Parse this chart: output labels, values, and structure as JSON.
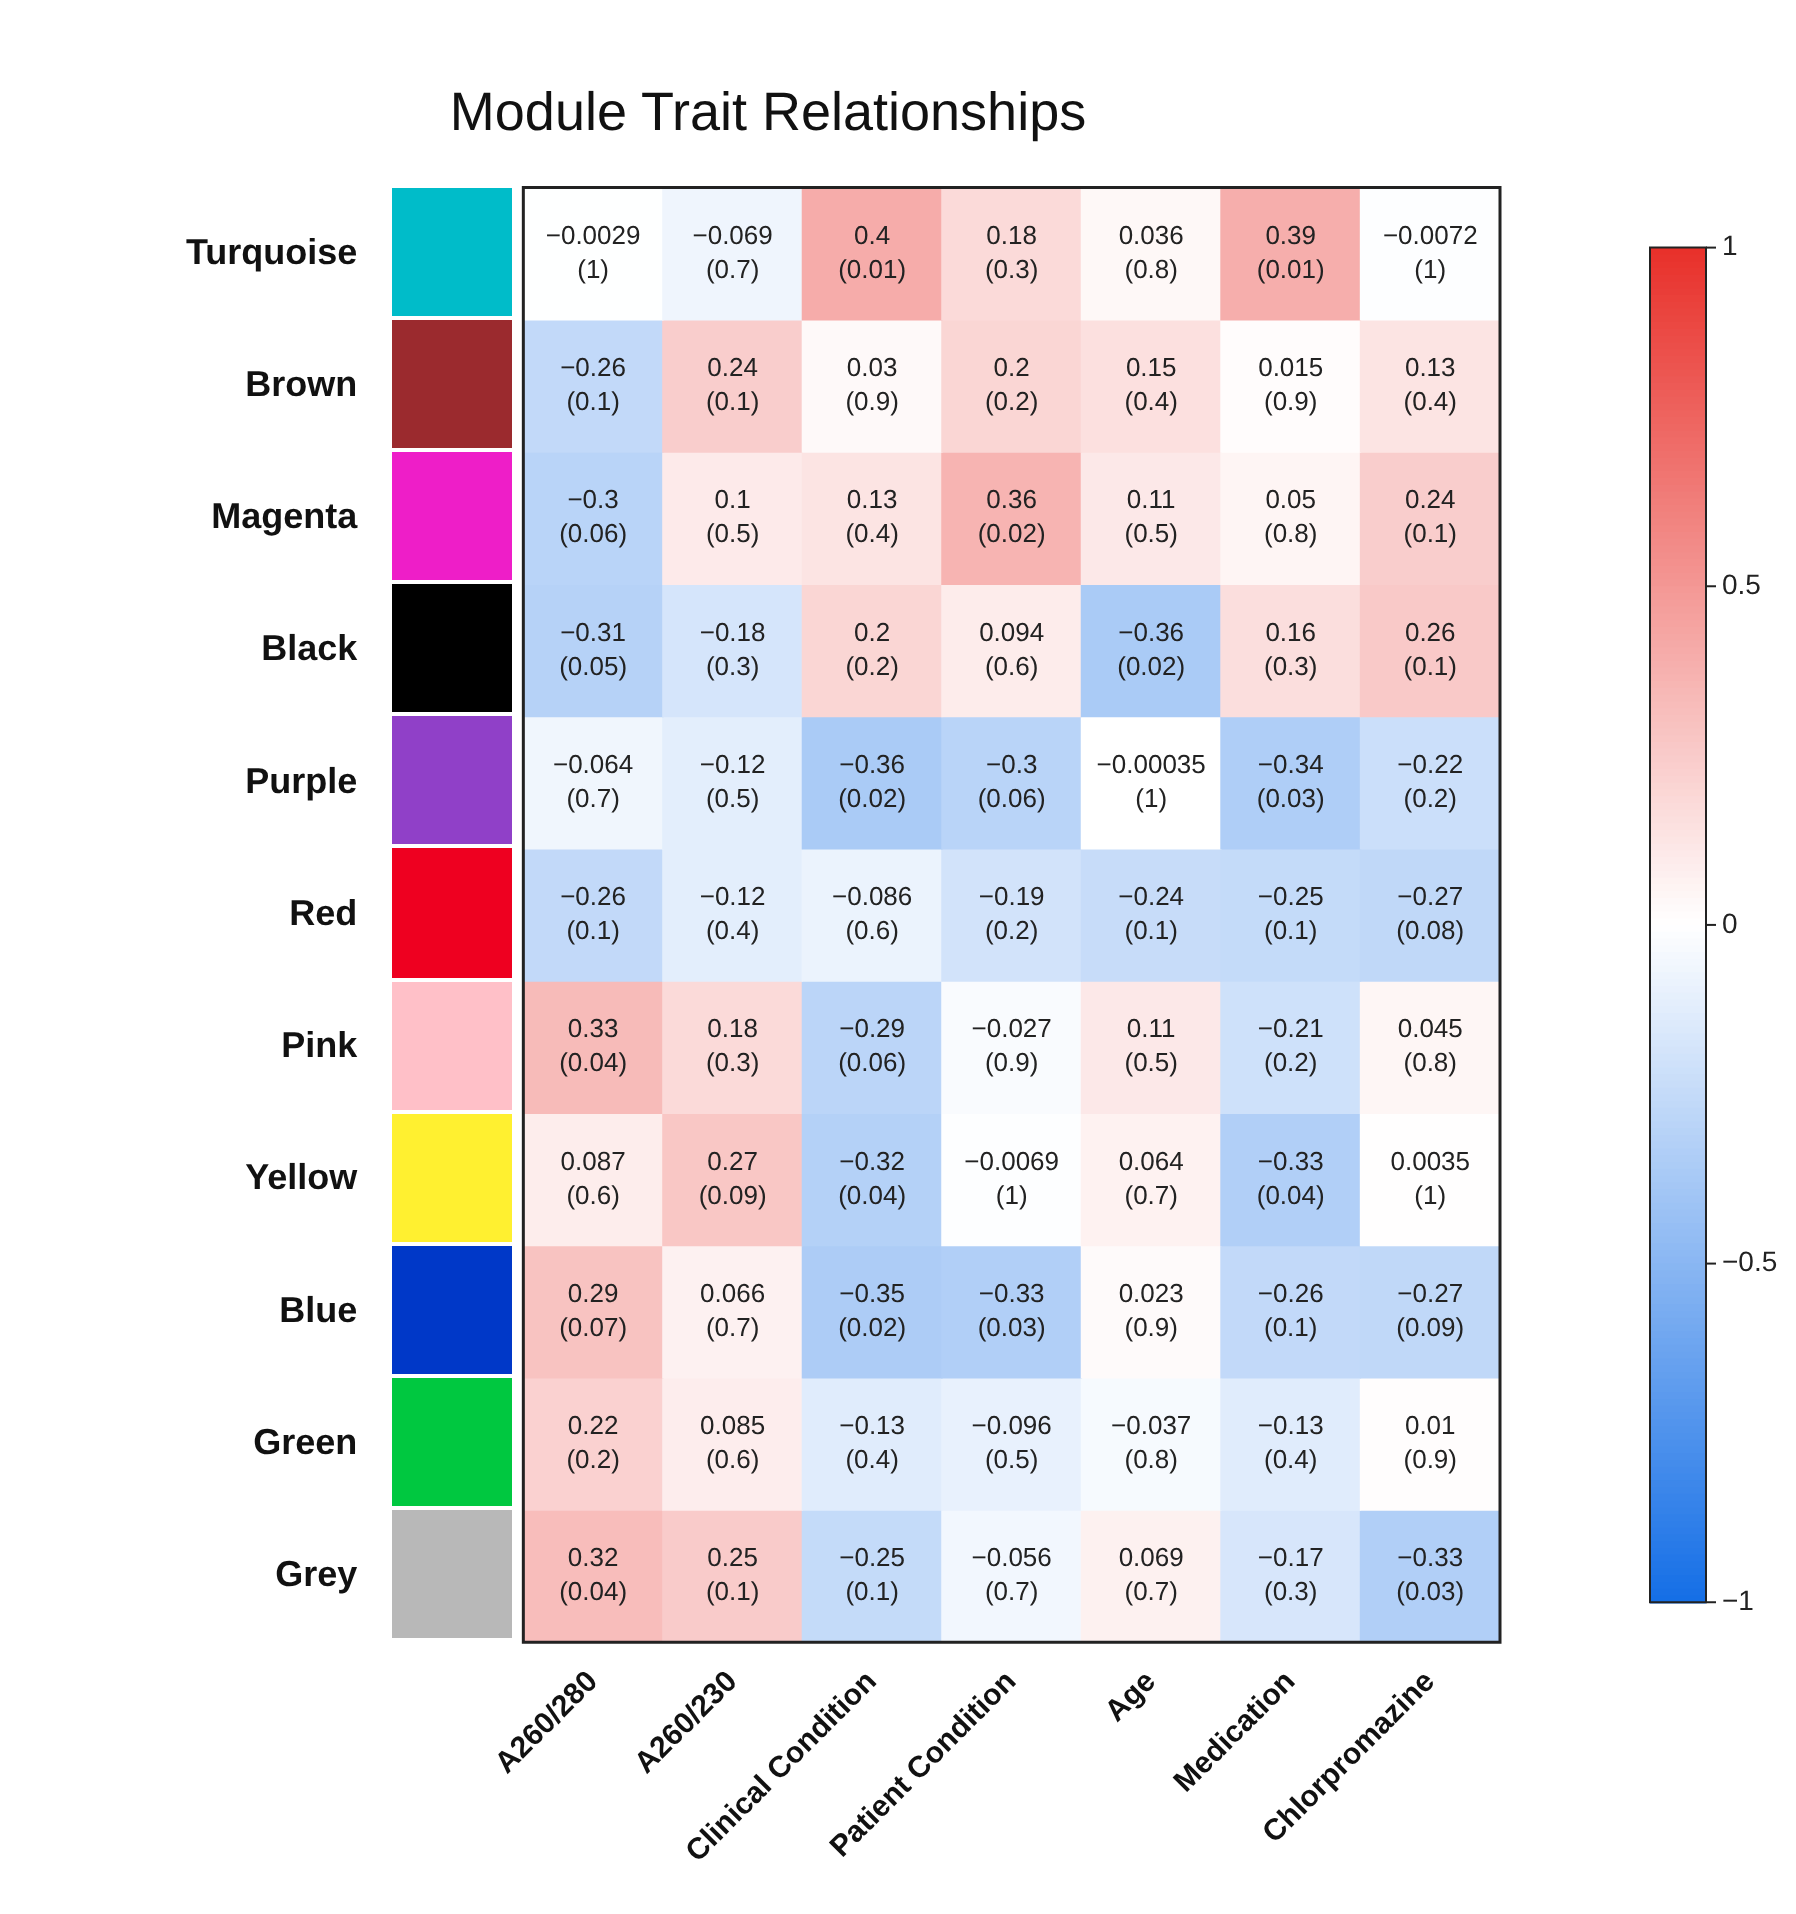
{
  "chart_data": {
    "type": "heatmap",
    "title": "Module Trait Relationships",
    "categories": [
      "A260/280",
      "A260/230",
      "Clinical Condition",
      "Patient Condition",
      "Age",
      "Medication",
      "Chlorpromazine"
    ],
    "y_categories": [
      "Turquoise",
      "Brown",
      "Magenta",
      "Black",
      "Purple",
      "Red",
      "Pink",
      "Yellow",
      "Blue",
      "Green",
      "Grey"
    ],
    "cells": [
      [
        -0.0029,
        -0.069,
        0.4,
        0.18,
        0.036,
        0.39,
        -0.0072
      ],
      [
        -0.26,
        0.24,
        0.03,
        0.2,
        0.15,
        0.015,
        0.13
      ],
      [
        -0.3,
        0.1,
        0.13,
        0.36,
        0.11,
        0.05,
        0.24
      ],
      [
        -0.31,
        -0.18,
        0.2,
        0.094,
        -0.36,
        0.16,
        0.26
      ],
      [
        -0.064,
        -0.12,
        -0.36,
        -0.3,
        -0.00035,
        -0.34,
        -0.22
      ],
      [
        -0.26,
        -0.12,
        -0.086,
        -0.19,
        -0.24,
        -0.25,
        -0.27
      ],
      [
        0.33,
        0.18,
        -0.29,
        -0.027,
        0.11,
        -0.21,
        0.045
      ],
      [
        0.087,
        0.27,
        -0.32,
        -0.0069,
        0.064,
        -0.33,
        0.0035
      ],
      [
        0.29,
        0.066,
        -0.35,
        -0.33,
        0.023,
        -0.26,
        -0.27
      ],
      [
        0.22,
        0.085,
        -0.13,
        -0.096,
        -0.037,
        -0.13,
        0.01
      ],
      [
        0.32,
        0.25,
        -0.25,
        -0.056,
        0.069,
        -0.17,
        -0.33
      ]
    ],
    "cell_labels": [
      [
        "−0.0029\n(1)",
        "−0.069\n(0.7)",
        "0.4\n(0.01)",
        "0.18\n(0.3)",
        "0.036\n(0.8)",
        "0.39\n(0.01)",
        "−0.0072\n(1)"
      ],
      [
        "−0.26\n(0.1)",
        "0.24\n(0.1)",
        "0.03\n(0.9)",
        "0.2\n(0.2)",
        "0.15\n(0.4)",
        "0.015\n(0.9)",
        "0.13\n(0.4)"
      ],
      [
        "−0.3\n(0.06)",
        "0.1\n(0.5)",
        "0.13\n(0.4)",
        "0.36\n(0.02)",
        "0.11\n(0.5)",
        "0.05\n(0.8)",
        "0.24\n(0.1)"
      ],
      [
        "−0.31\n(0.05)",
        "−0.18\n(0.3)",
        "0.2\n(0.2)",
        "0.094\n(0.6)",
        "−0.36\n(0.02)",
        "0.16\n(0.3)",
        "0.26\n(0.1)"
      ],
      [
        "−0.064\n(0.7)",
        "−0.12\n(0.5)",
        "−0.36\n(0.02)",
        "−0.3\n(0.06)",
        "−0.00035\n(1)",
        "−0.34\n(0.03)",
        "−0.22\n(0.2)"
      ],
      [
        "−0.26\n(0.1)",
        "−0.12\n(0.4)",
        "−0.086\n(0.6)",
        "−0.19\n(0.2)",
        "−0.24\n(0.1)",
        "−0.25\n(0.1)",
        "−0.27\n(0.08)"
      ],
      [
        "0.33\n(0.04)",
        "0.18\n(0.3)",
        "−0.29\n(0.06)",
        "−0.027\n(0.9)",
        "0.11\n(0.5)",
        "−0.21\n(0.2)",
        "0.045\n(0.8)"
      ],
      [
        "0.087\n(0.6)",
        "0.27\n(0.09)",
        "−0.32\n(0.04)",
        "−0.0069\n(1)",
        "0.064\n(0.7)",
        "−0.33\n(0.04)",
        "0.0035\n(1)"
      ],
      [
        "0.29\n(0.07)",
        "0.066\n(0.7)",
        "−0.35\n(0.02)",
        "−0.33\n(0.03)",
        "0.023\n(0.9)",
        "−0.26\n(0.1)",
        "−0.27\n(0.09)"
      ],
      [
        "0.22\n(0.2)",
        "0.085\n(0.6)",
        "−0.13\n(0.4)",
        "−0.096\n(0.5)",
        "−0.037\n(0.8)",
        "−0.13\n(0.4)",
        "0.01\n(0.9)"
      ],
      [
        "0.32\n(0.04)",
        "0.25\n(0.1)",
        "−0.25\n(0.1)",
        "−0.056\n(0.7)",
        "0.069\n(0.7)",
        "−0.17\n(0.3)",
        "−0.33\n(0.03)"
      ]
    ],
    "clim": [
      -1,
      1
    ],
    "cticks": [
      {
        "value": -1,
        "label": "−1"
      },
      {
        "value": -0.5,
        "label": "−0.5"
      },
      {
        "value": 0,
        "label": "0"
      },
      {
        "value": 0.5,
        "label": "0.5"
      },
      {
        "value": 1,
        "label": "1"
      }
    ]
  }
}
